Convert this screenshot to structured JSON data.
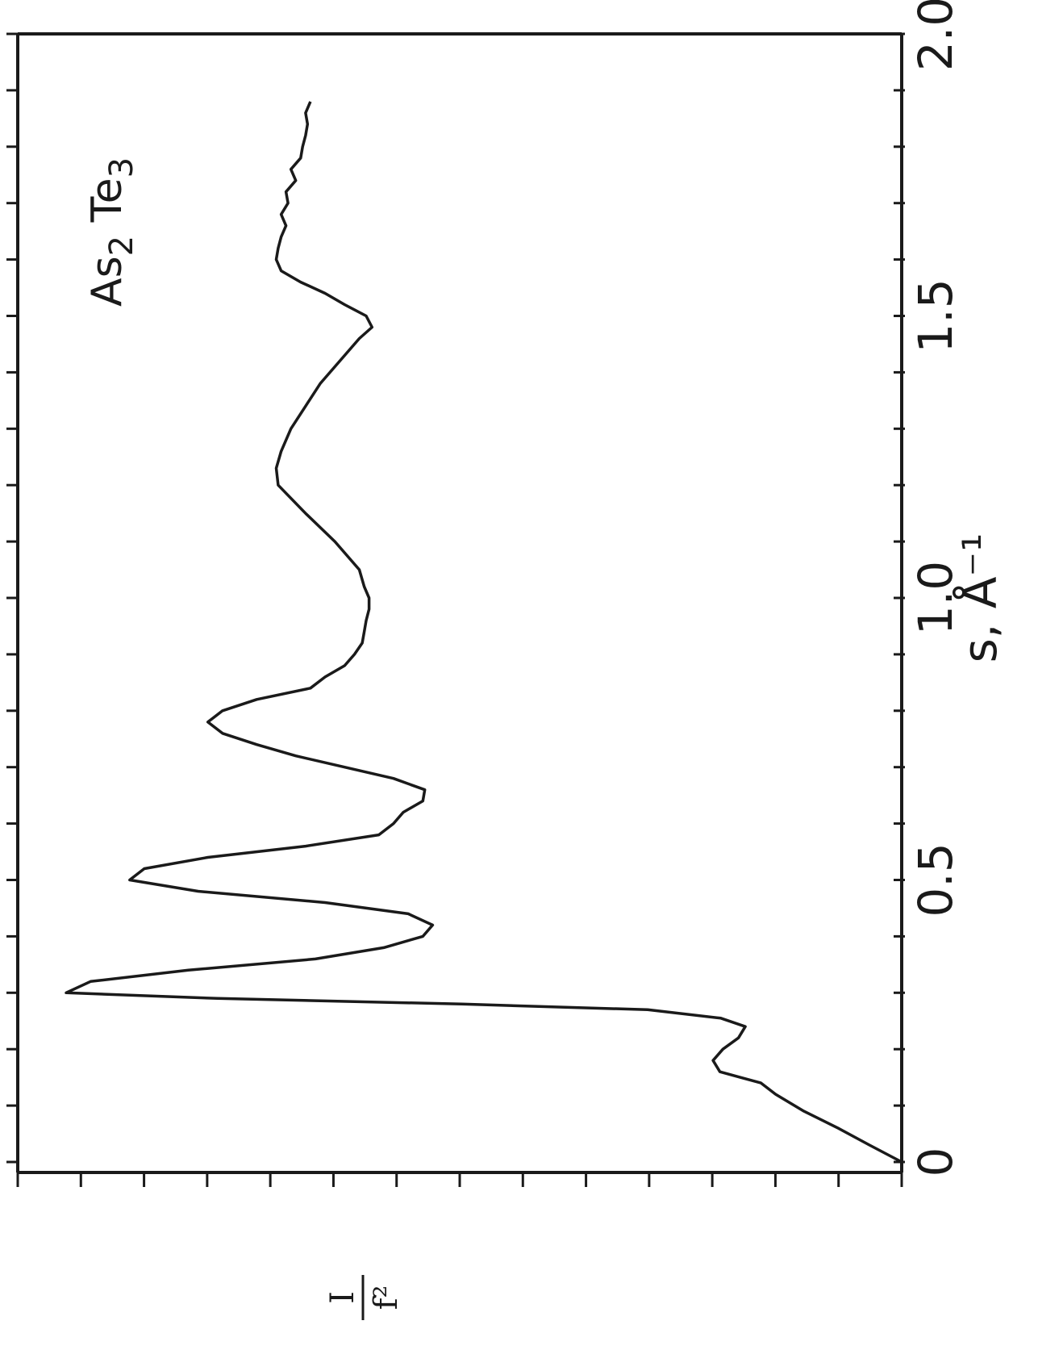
{
  "chart_data": {
    "type": "line",
    "title": {
      "main1": "As",
      "sub1": "2",
      "main2": " Te",
      "sub2": "3"
    },
    "xlabel": "s, Å⁻¹",
    "ylabel": {
      "numerator": "I",
      "denominator": "f²"
    },
    "xlim": [
      0,
      2.0
    ],
    "x_ticks": [
      {
        "value": 0,
        "label": "0"
      },
      {
        "value": 0.5,
        "label": "0.5"
      },
      {
        "value": 1.0,
        "label": "1.0"
      },
      {
        "value": 1.5,
        "label": "1.5"
      },
      {
        "value": 2.0,
        "label": "2.0"
      }
    ],
    "x_minor_step": 0.1,
    "y_tick_count": 15,
    "grid": false,
    "y_units": "relative intensity (unlabeled, 0 = baseline)",
    "series": [
      {
        "x": [
          0,
          0.03,
          0.06,
          0.09,
          0.12,
          0.14,
          0.15,
          0.16,
          0.18,
          0.2,
          0.22,
          0.24,
          0.255,
          0.27,
          0.28,
          0.29,
          0.3,
          0.32,
          0.34,
          0.36,
          0.38,
          0.4,
          0.42,
          0.44,
          0.46,
          0.48,
          0.5,
          0.52,
          0.54,
          0.56,
          0.58,
          0.6,
          0.62,
          0.64,
          0.66,
          0.68,
          0.7,
          0.72,
          0.74,
          0.76,
          0.78,
          0.8,
          0.82,
          0.84,
          0.86,
          0.88,
          0.9,
          0.92,
          0.94,
          0.96,
          0.98,
          1.0,
          1.02,
          1.05,
          1.1,
          1.15,
          1.2,
          1.23,
          1.26,
          1.3,
          1.34,
          1.38,
          1.42,
          1.46,
          1.48,
          1.5,
          1.52,
          1.54,
          1.56,
          1.58,
          1.6,
          1.62,
          1.64,
          1.66,
          1.68,
          1.7,
          1.72,
          1.74,
          1.76,
          1.78,
          1.8,
          1.82,
          1.84,
          1.86,
          1.88
        ],
        "y": [
          0,
          3.3,
          6.5,
          10.0,
          12.9,
          14.4,
          16.5,
          18.6,
          19.3,
          18.3,
          16.7,
          16.0,
          18.5,
          26.0,
          45.0,
          70.0,
          85.5,
          83.0,
          73.0,
          60.0,
          53.0,
          49.0,
          48.0,
          50.5,
          59.0,
          72.0,
          79.0,
          77.5,
          71.0,
          61.0,
          53.5,
          52.0,
          51.0,
          49.0,
          48.8,
          52.0,
          57.0,
          62.0,
          66.0,
          69.5,
          71.0,
          69.5,
          66.0,
          60.5,
          59.0,
          57.0,
          56.0,
          55.2,
          55.0,
          54.8,
          54.5,
          54.5,
          55.0,
          55.5,
          58.0,
          61.0,
          63.8,
          64.0,
          63.5,
          62.5,
          61.0,
          59.5,
          57.5,
          55.5,
          54.2,
          54.8,
          57.0,
          59.0,
          61.5,
          63.5,
          64.0,
          63.8,
          63.5,
          63.0,
          63.5,
          62.8,
          63.0,
          62.0,
          62.5,
          61.5,
          61.3,
          61.0,
          60.8,
          61.0,
          60.5
        ]
      }
    ]
  }
}
